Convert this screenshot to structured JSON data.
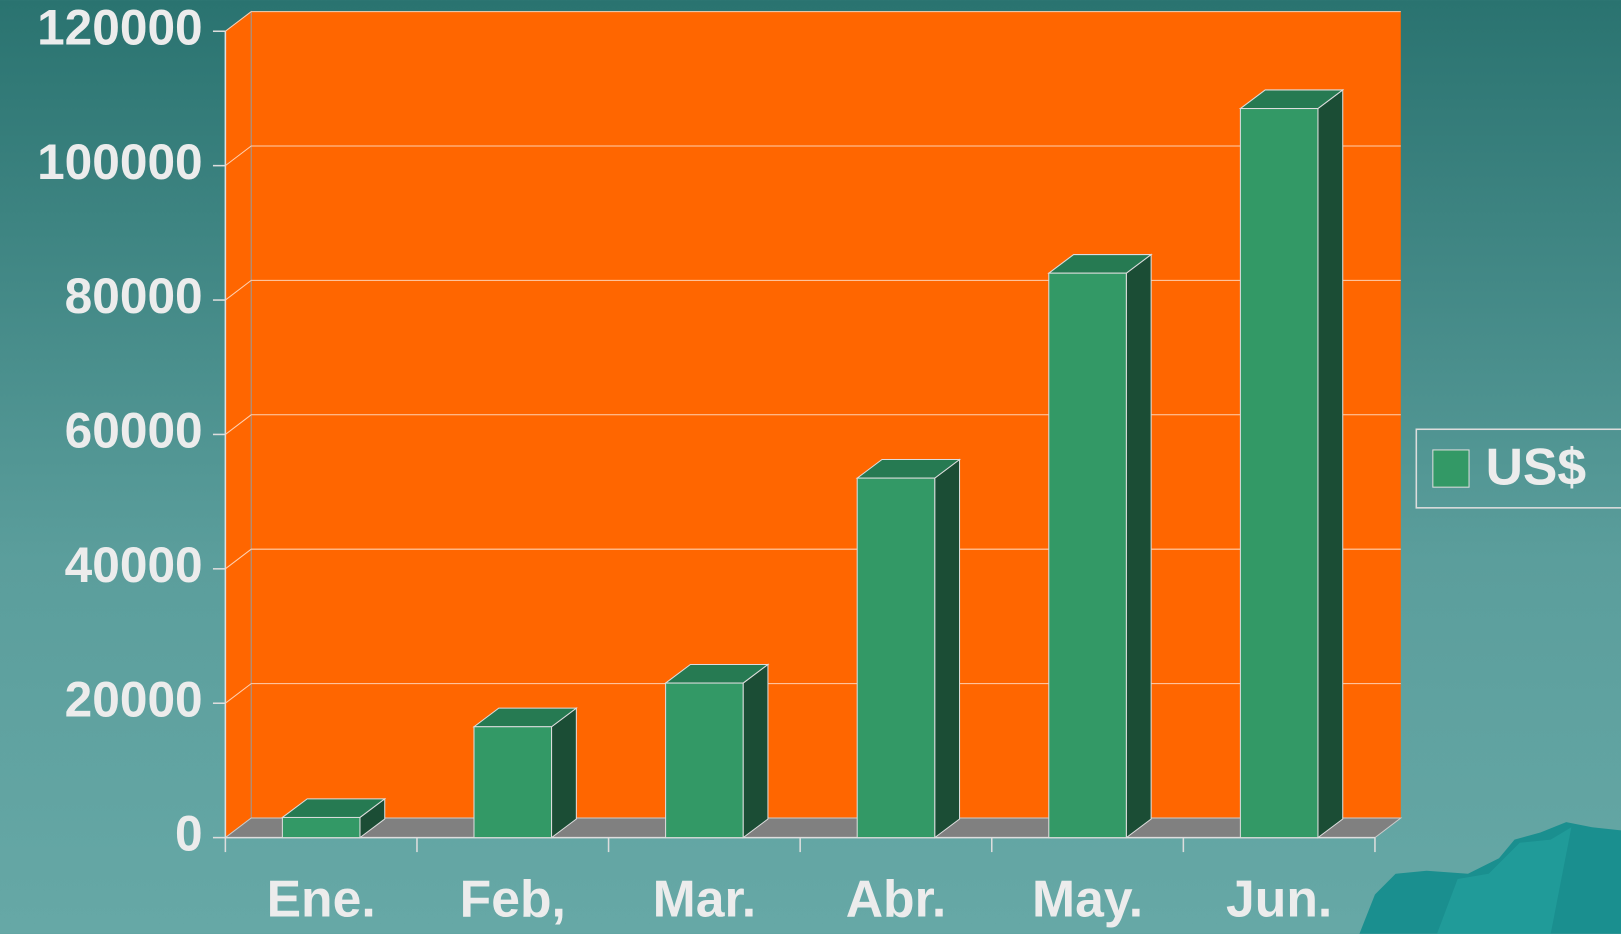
{
  "chart_data": {
    "type": "bar",
    "categories": [
      "Ene.",
      "Feb,",
      "Mar.",
      "Abr.",
      "May.",
      "Jun."
    ],
    "series": [
      {
        "name": "US$",
        "color": "#339966",
        "values": [
          3000,
          16500,
          23000,
          53500,
          84000,
          108500
        ]
      }
    ],
    "ylim": [
      0,
      120000
    ],
    "yticks": [
      0,
      20000,
      40000,
      60000,
      80000,
      100000,
      120000
    ],
    "grid": true,
    "legend": "right"
  }
}
